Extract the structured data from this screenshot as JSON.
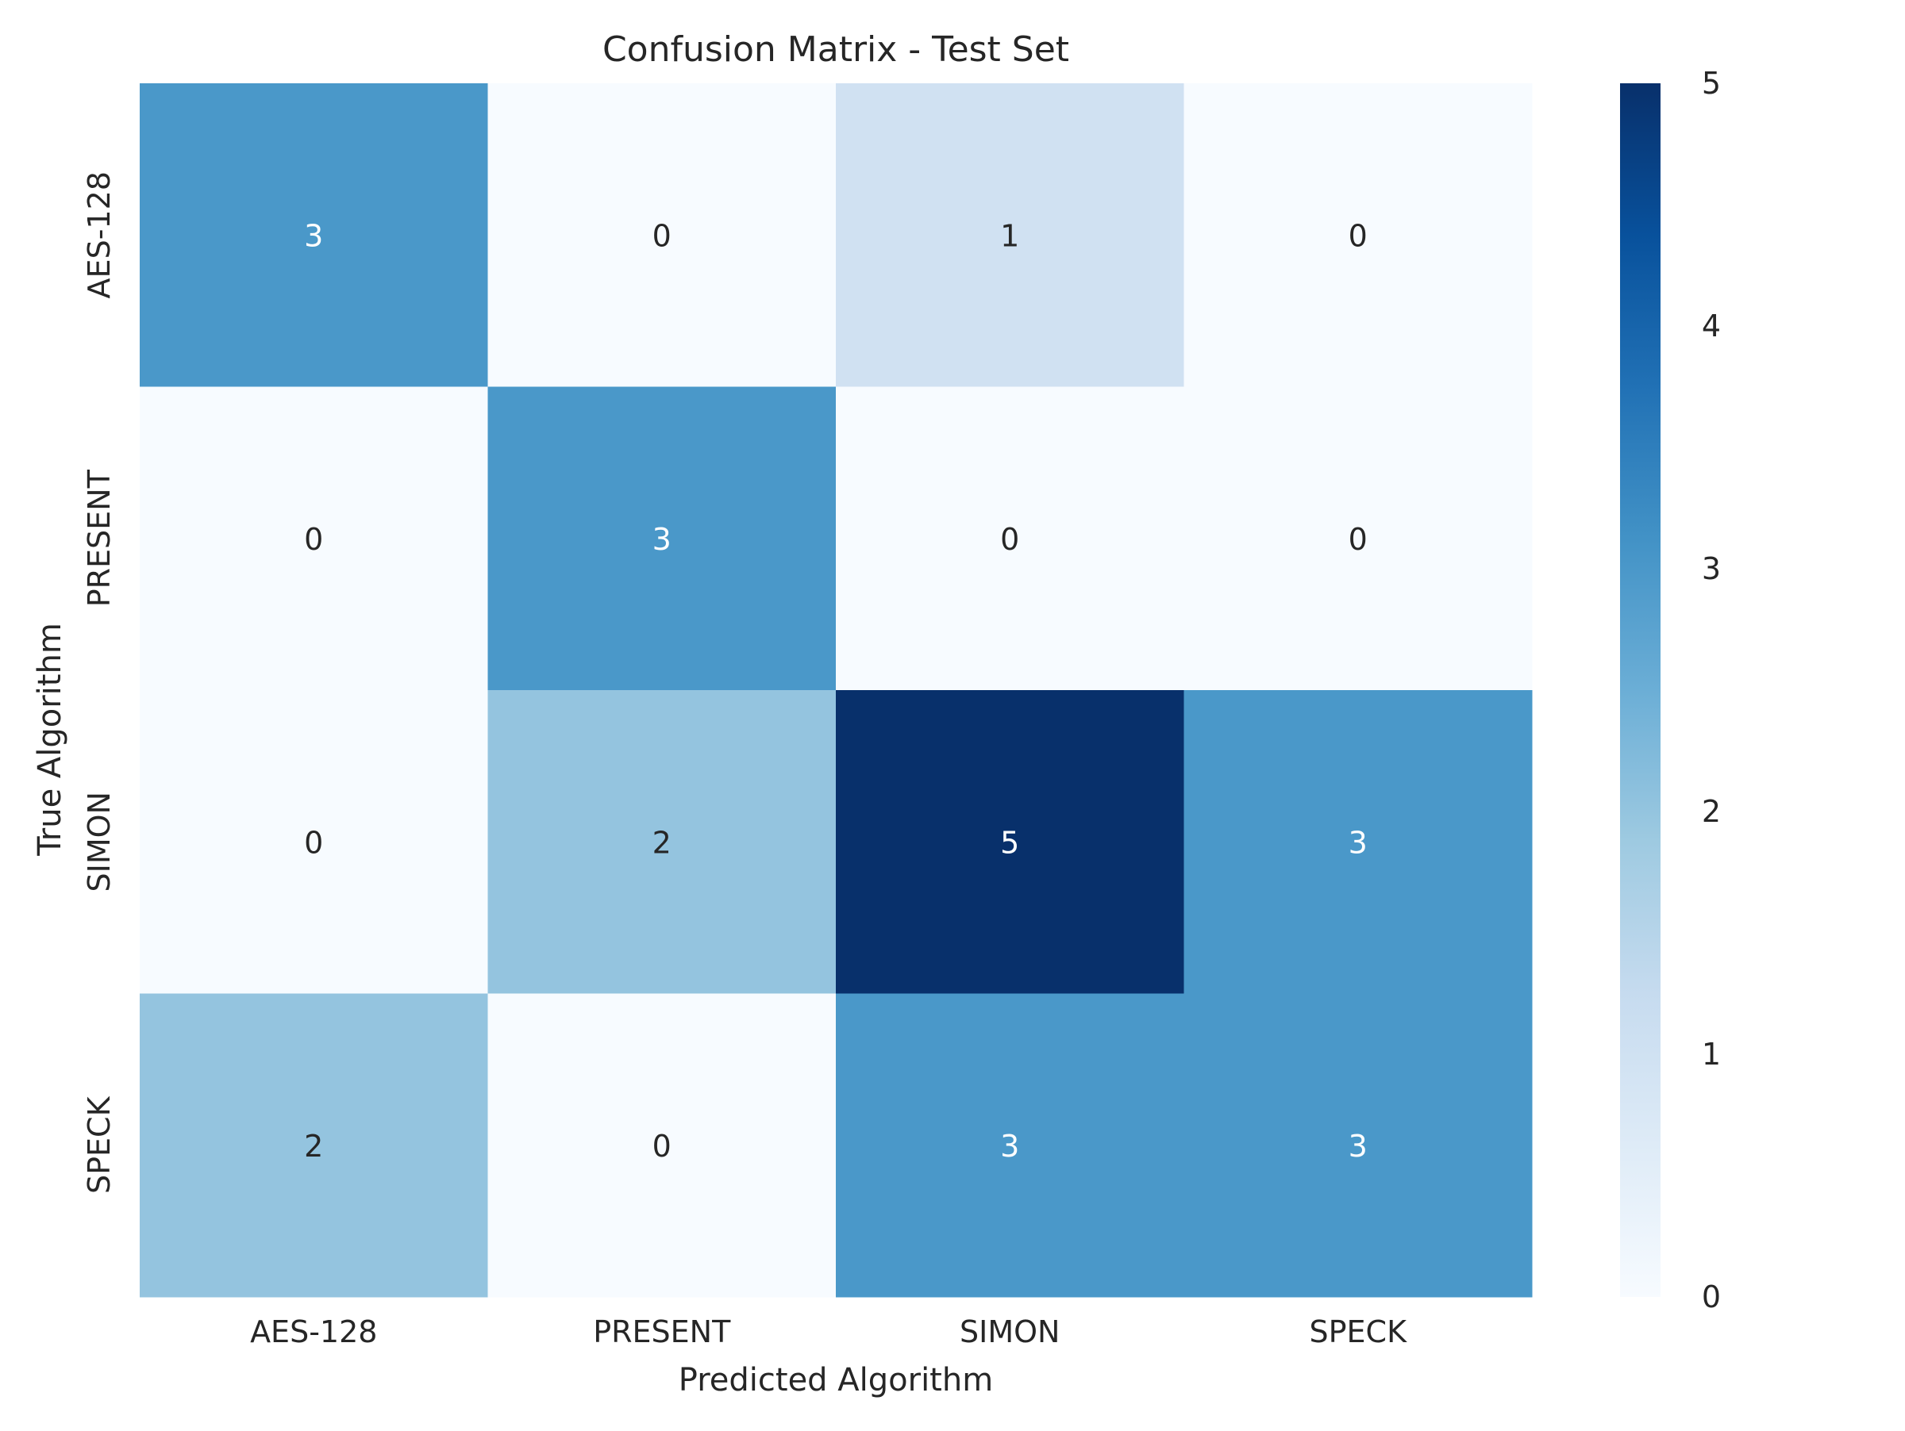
{
  "chart_data": {
    "type": "heatmap",
    "title": "Confusion Matrix - Test Set",
    "xlabel": "Predicted Algorithm",
    "ylabel": "True Algorithm",
    "x_categories": [
      "AES-128",
      "PRESENT",
      "SIMON",
      "SPECK"
    ],
    "y_categories": [
      "AES-128",
      "PRESENT",
      "SIMON",
      "SPECK"
    ],
    "values": [
      [
        3,
        0,
        1,
        0
      ],
      [
        0,
        3,
        0,
        0
      ],
      [
        0,
        2,
        5,
        3
      ],
      [
        2,
        0,
        3,
        3
      ]
    ],
    "colorbar": {
      "range": [
        0,
        5
      ],
      "ticks": [
        "0",
        "1",
        "2",
        "3",
        "4",
        "5"
      ],
      "colormap": "Blues"
    },
    "grid": false,
    "colors": {
      "low": "#f7fbff",
      "high": "#08306b",
      "text_dark": "#262626",
      "text_light": "#ffffff"
    }
  }
}
